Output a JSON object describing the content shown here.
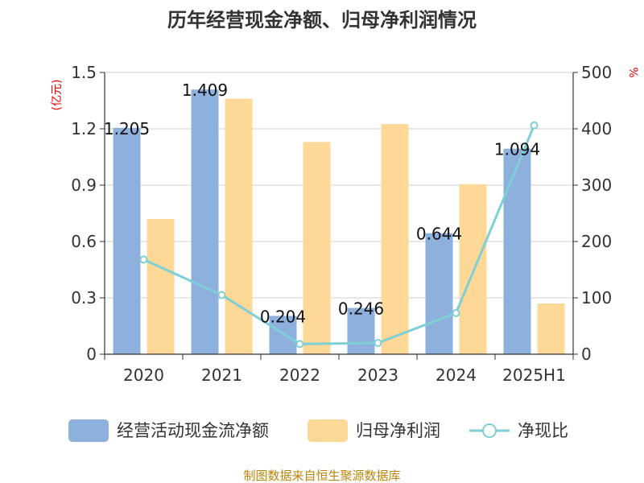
{
  "chart_data": {
    "type": "bar",
    "title": "历年经营现金净额、归母净利润情况",
    "categories": [
      "2020",
      "2021",
      "2022",
      "2023",
      "2024",
      "2025H1"
    ],
    "left_axis": {
      "unit": "(亿元)",
      "ticks": [
        "0",
        "0.3",
        "0.6",
        "0.9",
        "1.2",
        "1.5"
      ],
      "ylim": [
        0,
        1.5
      ]
    },
    "right_axis": {
      "unit": "%",
      "ticks": [
        "0",
        "100",
        "200",
        "300",
        "400",
        "500"
      ],
      "ylim": [
        0,
        500
      ]
    },
    "series": [
      {
        "name": "经营活动现金流净额",
        "type": "bar",
        "axis": "left",
        "color": "#8eb0dc",
        "values": [
          1.205,
          1.409,
          0.204,
          0.246,
          0.644,
          1.094
        ]
      },
      {
        "name": "归母净利润",
        "type": "bar",
        "axis": "left",
        "color": "#fdd897",
        "values": [
          0.72,
          1.36,
          1.13,
          1.225,
          0.905,
          0.27
        ]
      },
      {
        "name": "净现比",
        "type": "line",
        "axis": "right",
        "color": "#7fcfd6",
        "values": [
          168,
          105,
          18,
          20,
          73,
          406
        ]
      }
    ],
    "data_labels": [
      "1.205",
      "1.409",
      "0.204",
      "0.246",
      "0.644",
      "1.094"
    ],
    "grid": true,
    "legend_position": "bottom"
  },
  "source": "制图数据来自恒生聚源数据库"
}
